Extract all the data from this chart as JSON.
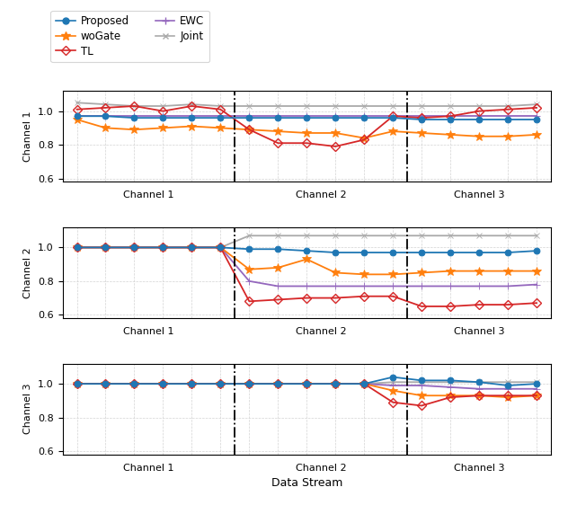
{
  "xlabel": "Data Stream",
  "ylabel_ch1": "Channel 1",
  "ylabel_ch2": "Channel 2",
  "ylabel_ch3": "Channel 3",
  "ylim": [
    0.58,
    1.12
  ],
  "segment_boundaries": [
    5.5,
    11.5
  ],
  "colors": {
    "Proposed": "#1f77b4",
    "TL": "#d62728",
    "Joint": "#aaaaaa",
    "woGate": "#ff7f0e",
    "EWC": "#9467bd"
  },
  "markers": {
    "Proposed": "o",
    "TL": "D",
    "Joint": "x",
    "woGate": "*",
    "EWC": "+"
  },
  "ch1": {
    "x": [
      0,
      1,
      2,
      3,
      4,
      5,
      6,
      7,
      8,
      9,
      10,
      11,
      12,
      13,
      14,
      15,
      16
    ],
    "Proposed": [
      0.97,
      0.97,
      0.96,
      0.96,
      0.96,
      0.96,
      0.96,
      0.96,
      0.96,
      0.96,
      0.96,
      0.96,
      0.95,
      0.95,
      0.95,
      0.95,
      0.95
    ],
    "TL": [
      1.01,
      1.02,
      1.03,
      1.0,
      1.03,
      1.01,
      0.89,
      0.81,
      0.81,
      0.79,
      0.83,
      0.97,
      0.96,
      0.97,
      1.0,
      1.01,
      1.02
    ],
    "Joint": [
      1.05,
      1.04,
      1.03,
      1.03,
      1.04,
      1.03,
      1.03,
      1.03,
      1.03,
      1.03,
      1.03,
      1.03,
      1.03,
      1.03,
      1.03,
      1.03,
      1.04
    ],
    "woGate": [
      0.95,
      0.9,
      0.89,
      0.9,
      0.91,
      0.9,
      0.89,
      0.88,
      0.87,
      0.87,
      0.84,
      0.88,
      0.87,
      0.86,
      0.85,
      0.85,
      0.86
    ],
    "EWC": [
      0.97,
      0.97,
      0.97,
      0.97,
      0.97,
      0.97,
      0.97,
      0.97,
      0.97,
      0.97,
      0.97,
      0.97,
      0.97,
      0.97,
      0.97,
      0.97,
      0.97
    ]
  },
  "ch2": {
    "x": [
      0,
      1,
      2,
      3,
      4,
      5,
      6,
      7,
      8,
      9,
      10,
      11,
      12,
      13,
      14,
      15,
      16
    ],
    "Proposed": [
      1.0,
      1.0,
      1.0,
      1.0,
      1.0,
      1.0,
      0.99,
      0.99,
      0.98,
      0.97,
      0.97,
      0.97,
      0.97,
      0.97,
      0.97,
      0.97,
      0.98
    ],
    "TL": [
      1.0,
      1.0,
      1.0,
      1.0,
      1.0,
      1.0,
      0.68,
      0.69,
      0.7,
      0.7,
      0.71,
      0.71,
      0.65,
      0.65,
      0.66,
      0.66,
      0.67
    ],
    "Joint": [
      1.0,
      1.0,
      1.0,
      1.0,
      1.0,
      1.0,
      1.07,
      1.07,
      1.07,
      1.07,
      1.07,
      1.07,
      1.07,
      1.07,
      1.07,
      1.07,
      1.07
    ],
    "woGate": [
      1.0,
      1.0,
      1.0,
      1.0,
      1.0,
      1.0,
      0.87,
      0.88,
      0.93,
      0.85,
      0.84,
      0.84,
      0.85,
      0.86,
      0.86,
      0.86,
      0.86
    ],
    "EWC": [
      1.0,
      1.0,
      1.0,
      1.0,
      1.0,
      1.0,
      0.8,
      0.77,
      0.77,
      0.77,
      0.77,
      0.77,
      0.77,
      0.77,
      0.77,
      0.77,
      0.78
    ]
  },
  "ch3": {
    "x": [
      0,
      1,
      2,
      3,
      4,
      5,
      6,
      7,
      8,
      9,
      10,
      11,
      12,
      13,
      14,
      15,
      16
    ],
    "Proposed": [
      1.0,
      1.0,
      1.0,
      1.0,
      1.0,
      1.0,
      1.0,
      1.0,
      1.0,
      1.0,
      1.0,
      1.04,
      1.02,
      1.02,
      1.01,
      0.99,
      1.0
    ],
    "TL": [
      1.0,
      1.0,
      1.0,
      1.0,
      1.0,
      1.0,
      1.0,
      1.0,
      1.0,
      1.0,
      1.0,
      0.89,
      0.87,
      0.92,
      0.93,
      0.93,
      0.93
    ],
    "Joint": [
      1.0,
      1.0,
      1.0,
      1.0,
      1.0,
      1.0,
      1.0,
      1.0,
      1.0,
      1.0,
      1.0,
      1.01,
      1.01,
      1.01,
      1.01,
      1.01,
      1.01
    ],
    "woGate": [
      1.0,
      1.0,
      1.0,
      1.0,
      1.0,
      1.0,
      1.0,
      1.0,
      1.0,
      1.0,
      1.0,
      0.96,
      0.93,
      0.93,
      0.93,
      0.92,
      0.93
    ],
    "EWC": [
      1.0,
      1.0,
      1.0,
      1.0,
      1.0,
      1.0,
      1.0,
      1.0,
      1.0,
      1.0,
      1.0,
      0.99,
      0.99,
      0.98,
      0.97,
      0.97,
      0.97
    ]
  }
}
